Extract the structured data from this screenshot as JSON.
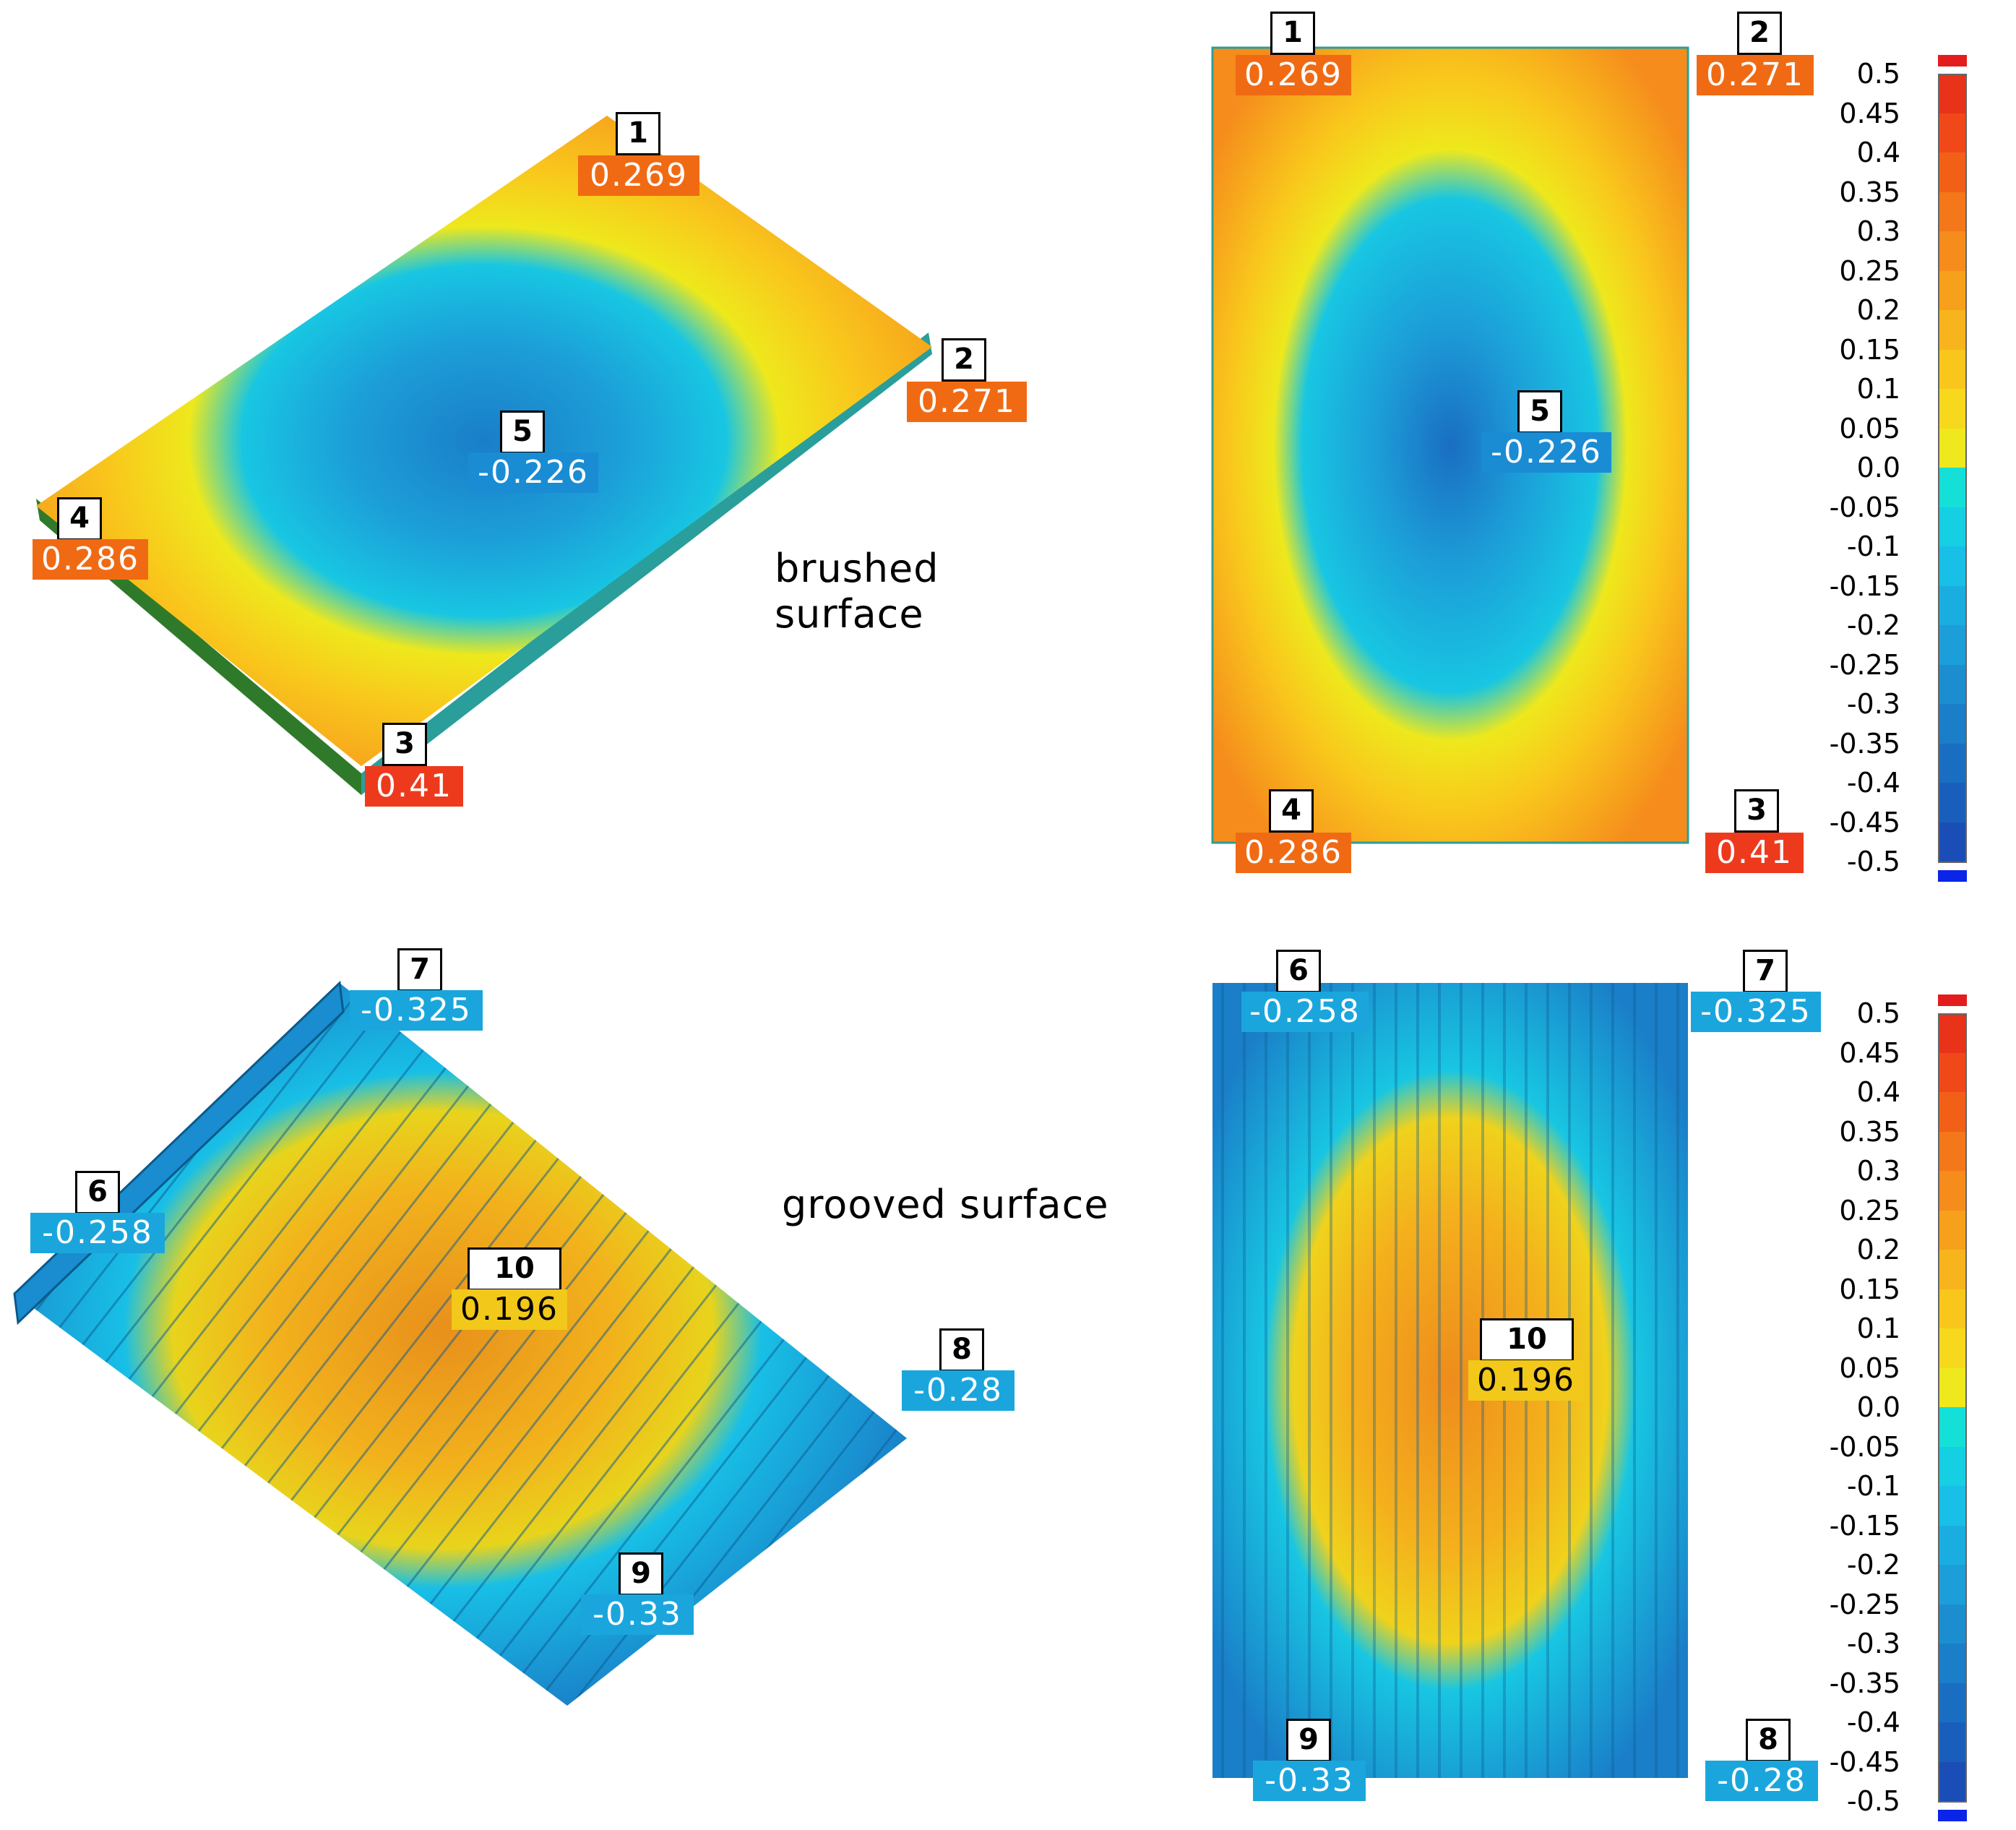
{
  "labels": {
    "brushed": "brushed surface",
    "grooved": "grooved surface"
  },
  "colors": {
    "scale": [
      "#e8321a",
      "#f04818",
      "#f26018",
      "#f4771a",
      "#f58c1c",
      "#f7a01c",
      "#f8b41c",
      "#f9c71c",
      "#f7d81c",
      "#eee81c",
      "#14e0d8",
      "#14d0e2",
      "#18bfe6",
      "#1aaee0",
      "#1c9ed8",
      "#1c8ed0",
      "#1a7ec8",
      "#1a6ec2",
      "#1a5ebc",
      "#1a4eb6"
    ],
    "over_range": "#e31d1d",
    "under_range": "#0a24e8"
  },
  "scale_ticks": [
    "0.5",
    "0.45",
    "0.4",
    "0.35",
    "0.3",
    "0.25",
    "0.2",
    "0.15",
    "0.1",
    "0.05",
    "0.0",
    "-0.05",
    "-0.1",
    "-0.15",
    "-0.2",
    "-0.25",
    "-0.3",
    "-0.35",
    "-0.4",
    "-0.45",
    "-0.5"
  ],
  "brushed_iso": {
    "points": [
      {
        "num": "1",
        "value": "0.269",
        "color": "#f06a14"
      },
      {
        "num": "2",
        "value": "0.271",
        "color": "#f06a14"
      },
      {
        "num": "3",
        "value": "0.41",
        "color": "#ee3a1c"
      },
      {
        "num": "4",
        "value": "0.286",
        "color": "#f06a14"
      },
      {
        "num": "5",
        "value": "-0.226",
        "color": "#1a8cd4"
      }
    ]
  },
  "brushed_top": {
    "points": [
      {
        "num": "1",
        "value": "0.269",
        "color": "#f06a14"
      },
      {
        "num": "2",
        "value": "0.271",
        "color": "#f06a14"
      },
      {
        "num": "3",
        "value": "0.41",
        "color": "#ee3a1c"
      },
      {
        "num": "4",
        "value": "0.286",
        "color": "#f06a14"
      },
      {
        "num": "5",
        "value": "-0.226",
        "color": "#1a8cd4"
      }
    ]
  },
  "grooved_iso": {
    "points": [
      {
        "num": "6",
        "value": "-0.258",
        "color": "#1aa6dc"
      },
      {
        "num": "7",
        "value": "-0.325",
        "color": "#1aa6dc"
      },
      {
        "num": "8",
        "value": "-0.28",
        "color": "#1aa6dc"
      },
      {
        "num": "9",
        "value": "-0.33",
        "color": "#1aa6dc"
      },
      {
        "num": "10",
        "value": "0.196",
        "color": "#f2c81a"
      }
    ]
  },
  "grooved_top": {
    "points": [
      {
        "num": "6",
        "value": "-0.258",
        "color": "#1aa6dc"
      },
      {
        "num": "7",
        "value": "-0.325",
        "color": "#1aa6dc"
      },
      {
        "num": "8",
        "value": "-0.28",
        "color": "#1aa6dc"
      },
      {
        "num": "9",
        "value": "-0.33",
        "color": "#1aa6dc"
      },
      {
        "num": "10",
        "value": "0.196",
        "color": "#f2c81a"
      }
    ]
  }
}
